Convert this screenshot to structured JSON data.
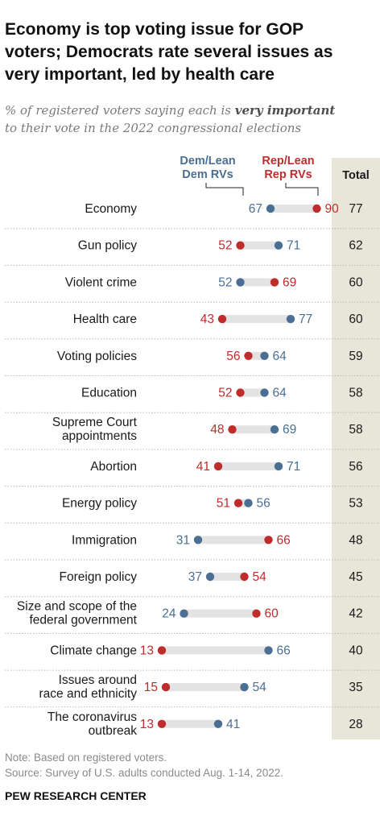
{
  "title_lines": [
    "Economy is top voting issue for GOP",
    "voters; Democrats rate several issues as",
    "very important, led by health care"
  ],
  "subtitle": {
    "line1_pre": "% of registered voters saying each is ",
    "line1_bold": "very important",
    "line2": "to their vote in the 2022 congressional elections"
  },
  "colors": {
    "dem": "#4b6f92",
    "rep": "#bf2c2c",
    "bar": "#e3e3e3",
    "total_bg": "#e8e6d9",
    "divider": "#b8b8b8"
  },
  "chart_data": {
    "type": "dot",
    "xlim": [
      0,
      100
    ],
    "series": [
      {
        "name": "Dem/Lean Dem RVs",
        "values": [
          67,
          71,
          52,
          77,
          64,
          64,
          69,
          71,
          56,
          31,
          37,
          24,
          66,
          54,
          41
        ]
      },
      {
        "name": "Rep/Lean Rep RVs",
        "values": [
          90,
          52,
          69,
          43,
          56,
          52,
          48,
          41,
          51,
          66,
          54,
          60,
          13,
          15,
          13
        ]
      }
    ],
    "categories": [
      "Economy",
      "Gun policy",
      "Violent crime",
      "Health care",
      "Voting policies",
      "Education",
      "Supreme Court appointments",
      "Abortion",
      "Energy policy",
      "Immigration",
      "Foreign policy",
      "Size and scope of the federal government",
      "Climate change",
      "Issues around race and ethnicity",
      "The coronavirus outbreak"
    ],
    "category_lines": [
      [
        "Economy"
      ],
      [
        "Gun policy"
      ],
      [
        "Violent crime"
      ],
      [
        "Health care"
      ],
      [
        "Voting policies"
      ],
      [
        "Education"
      ],
      [
        "Supreme Court",
        "appointments"
      ],
      [
        "Abortion"
      ],
      [
        "Energy policy"
      ],
      [
        "Immigration"
      ],
      [
        "Foreign policy"
      ],
      [
        "Size and scope of the",
        "federal government"
      ],
      [
        "Climate change"
      ],
      [
        "Issues around",
        "race and ethnicity"
      ],
      [
        "The coronavirus",
        "outbreak"
      ]
    ],
    "total_label": "Total",
    "totals": [
      77,
      62,
      60,
      60,
      59,
      58,
      58,
      56,
      53,
      48,
      45,
      42,
      40,
      35,
      28
    ]
  },
  "legend": {
    "dem_lines": [
      "Dem/Lean",
      "Dem RVs"
    ],
    "rep_lines": [
      "Rep/Lean",
      "Rep RVs"
    ]
  },
  "notes": {
    "note": "Note: Based on registered voters.",
    "source": "Source: Survey of U.S. adults conducted Aug. 1-14, 2022."
  },
  "branding": "PEW RESEARCH CENTER"
}
